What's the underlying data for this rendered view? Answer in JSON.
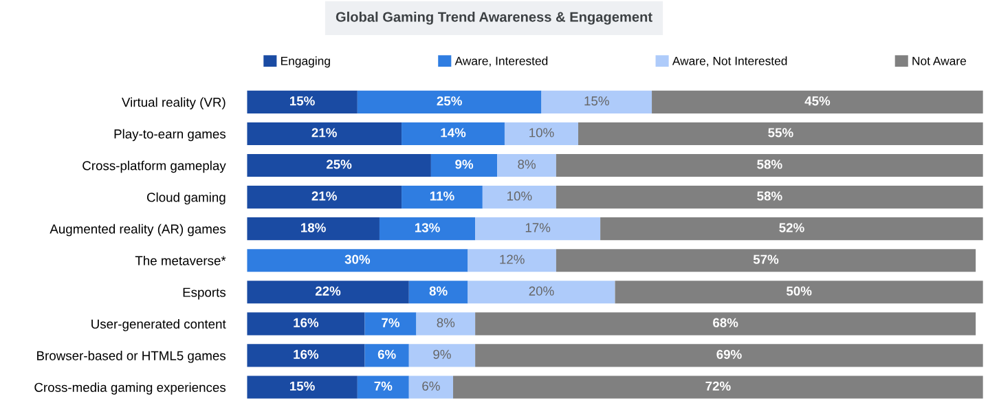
{
  "chart_data": {
    "type": "bar",
    "orientation": "horizontal",
    "stacked": true,
    "title": "Global Gaming Trend Awareness & Engagement",
    "categories": [
      "Virtual reality (VR)",
      "Play-to-earn games",
      "Cross-platform gameplay",
      "Cloud gaming",
      "Augmented reality (AR) games",
      "The metaverse*",
      "Esports",
      "User-generated content",
      "Browser-based or HTML5 games",
      "Cross-media gaming experiences"
    ],
    "series": [
      {
        "name": "Engaging",
        "color": "#1a4ba3",
        "values": [
          15,
          21,
          25,
          21,
          18,
          null,
          22,
          16,
          16,
          15
        ],
        "value_labels": [
          "15%",
          "21%",
          "25%",
          "21%",
          "18%",
          null,
          "22%",
          "16%",
          "16%",
          "15%"
        ]
      },
      {
        "name": "Aware, Interested",
        "color": "#2f7de1",
        "values": [
          25,
          14,
          9,
          11,
          13,
          30,
          8,
          7,
          6,
          7
        ],
        "value_labels": [
          "25%",
          "14%",
          "9%",
          "11%",
          "13%",
          "30%",
          "8%",
          "7%",
          "6%",
          "7%"
        ]
      },
      {
        "name": "Aware, Not Interested",
        "color": "#aecbfa",
        "values": [
          15,
          10,
          8,
          10,
          17,
          12,
          20,
          8,
          9,
          6
        ],
        "value_labels": [
          "15%",
          "10%",
          "8%",
          "10%",
          "17%",
          "12%",
          "20%",
          "8%",
          "9%",
          "6%"
        ]
      },
      {
        "name": "Not Aware",
        "color": "#808080",
        "values": [
          45,
          55,
          58,
          58,
          52,
          57,
          50,
          68,
          69,
          72
        ],
        "value_labels": [
          "45%",
          "55%",
          "58%",
          "58%",
          "52%",
          "57%",
          "50%",
          "68%",
          "69%",
          "72%"
        ]
      }
    ],
    "legend": "top",
    "grid": false
  }
}
